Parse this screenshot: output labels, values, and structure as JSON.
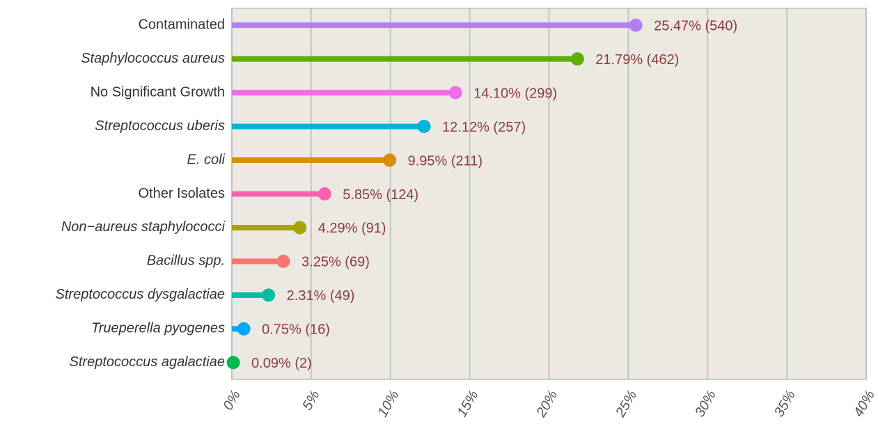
{
  "chart_data": {
    "type": "lollipop",
    "categories": [
      "Contaminated",
      "Staphylococcus aureus",
      "No Significant Growth",
      "Streptococcus uberis",
      "E. coli",
      "Other Isolates",
      "Non−aureus staphylococci",
      "Bacillus spp.",
      "Streptococcus dysgalactiae",
      "Trueperella pyogenes",
      "Streptococcus agalactiae"
    ],
    "italic": [
      false,
      true,
      false,
      true,
      true,
      false,
      true,
      true,
      true,
      true,
      true
    ],
    "values": [
      25.47,
      21.79,
      14.1,
      12.12,
      9.95,
      5.85,
      4.29,
      3.25,
      2.31,
      0.75,
      0.09
    ],
    "value_labels": [
      "25.47% (540)",
      "21.79% (462)",
      "14.10% (299)",
      "12.12% (257)",
      "9.95% (211)",
      "5.85% (124)",
      "4.29% (91)",
      "3.25% (69)",
      "2.31% (49)",
      "0.75% (16)",
      "0.09% (2)"
    ],
    "colors": [
      "#b47ff2",
      "#5fae00",
      "#ec6ee8",
      "#00b4d8",
      "#d98e00",
      "#fb61b0",
      "#a9a300",
      "#f8766d",
      "#00bfa5",
      "#00a6ff",
      "#00b94e"
    ],
    "xlim": [
      0,
      40
    ],
    "xticks": [
      {
        "value": 0,
        "label": "0%"
      },
      {
        "value": 5,
        "label": "5%"
      },
      {
        "value": 10,
        "label": "10%"
      },
      {
        "value": 15,
        "label": "15%"
      },
      {
        "value": 20,
        "label": "20%"
      },
      {
        "value": 25,
        "label": "25%"
      },
      {
        "value": 30,
        "label": "30%"
      },
      {
        "value": 35,
        "label": "35%"
      },
      {
        "value": 40,
        "label": "40%"
      }
    ],
    "grid": true
  }
}
